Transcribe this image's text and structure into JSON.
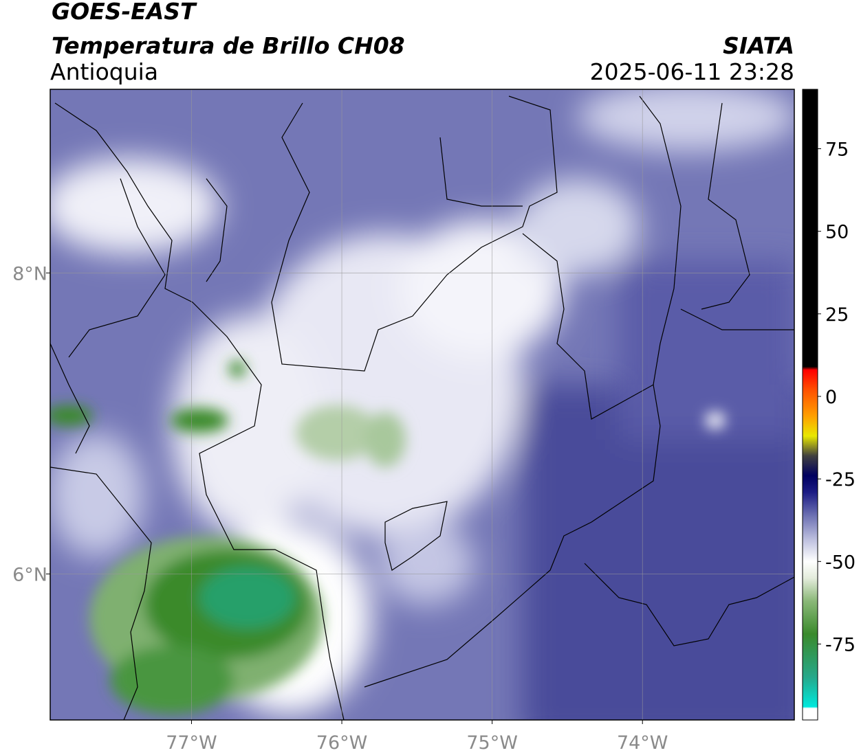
{
  "header": {
    "satellite": "GOES-EAST",
    "product": "Temperatura de Brillo CH08",
    "region": "Antioquia",
    "source": "SIATA",
    "datetime": "2025-06-11 23:28"
  },
  "map": {
    "xlim": [
      -77.94,
      -72.99
    ],
    "ylim": [
      5.03,
      9.22
    ],
    "xticks": [
      {
        "value": -77,
        "label": "77°W"
      },
      {
        "value": -76,
        "label": "76°W"
      },
      {
        "value": -75,
        "label": "75°W"
      },
      {
        "value": -74,
        "label": "74°W"
      }
    ],
    "yticks": [
      {
        "value": 8,
        "label": "8°N"
      },
      {
        "value": 6,
        "label": "6°N"
      }
    ],
    "grid": true
  },
  "colorbar": {
    "lim": [
      -98,
      93
    ],
    "ticks": [
      75,
      50,
      25,
      0,
      -25,
      -50,
      -75
    ],
    "stops": [
      {
        "value": -98,
        "color": "#ffffff"
      },
      {
        "value": -94.5,
        "color": "#ffffff"
      },
      {
        "value": -94,
        "color": "#00e8dc"
      },
      {
        "value": -85,
        "color": "#26a88a"
      },
      {
        "value": -72,
        "color": "#3a8a2c"
      },
      {
        "value": -62,
        "color": "#8ab878"
      },
      {
        "value": -55,
        "color": "#e4ecdc"
      },
      {
        "value": -50,
        "color": "#ffffff"
      },
      {
        "value": -44,
        "color": "#c4c6e2"
      },
      {
        "value": -36,
        "color": "#6c70b2"
      },
      {
        "value": -29,
        "color": "#1c1c84"
      },
      {
        "value": -24,
        "color": "#000060"
      },
      {
        "value": -18,
        "color": "#404040"
      },
      {
        "value": -12,
        "color": "#e8e800"
      },
      {
        "value": -6,
        "color": "#ffa000"
      },
      {
        "value": 2,
        "color": "#ff5000"
      },
      {
        "value": 8,
        "color": "#ff0000"
      },
      {
        "value": 9,
        "color": "#000000"
      },
      {
        "value": 93,
        "color": "#000000"
      }
    ]
  }
}
